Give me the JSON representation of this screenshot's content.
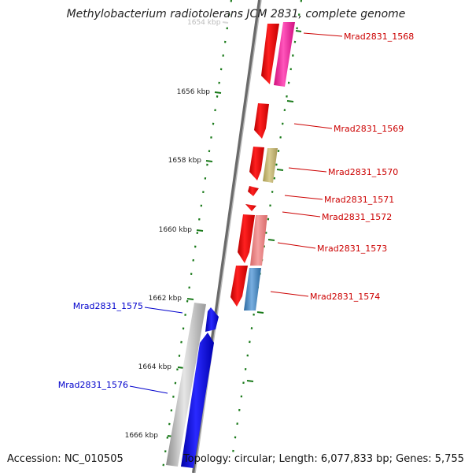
{
  "title": "Methylobacterium radiotolerans JCM 2831, complete genome",
  "footer": {
    "accession": "Accession: NC_010505",
    "info": "Topology: circular; Length: 6,077,833 bp; Genes: 5,755"
  },
  "scale": {
    "partial_top_label": "1654 kbp",
    "ticks": [
      {
        "label": "1656 kbp"
      },
      {
        "label": "1658 kbp"
      },
      {
        "label": "1660 kbp"
      },
      {
        "label": "1662 kbp"
      },
      {
        "label": "1664 kbp"
      },
      {
        "label": "1666 kbp"
      }
    ]
  },
  "genes": [
    {
      "label": "Mrad2831_1568",
      "strand": "forward",
      "color": "#cc0000"
    },
    {
      "label": "Mrad2831_1569",
      "strand": "forward",
      "color": "#cc0000"
    },
    {
      "label": "Mrad2831_1570",
      "strand": "forward",
      "color": "#cc0000"
    },
    {
      "label": "Mrad2831_1571",
      "strand": "forward",
      "color": "#cc0000"
    },
    {
      "label": "Mrad2831_1572",
      "strand": "forward",
      "color": "#cc0000"
    },
    {
      "label": "Mrad2831_1573",
      "strand": "forward",
      "color": "#cc0000"
    },
    {
      "label": "Mrad2831_1574",
      "strand": "forward",
      "color": "#cc0000"
    },
    {
      "label": "Mrad2831_1575",
      "strand": "reverse",
      "color": "#0000cc"
    },
    {
      "label": "Mrad2831_1576",
      "strand": "reverse",
      "color": "#0000cc"
    }
  ],
  "colors": {
    "forward_cds": "#ff0000",
    "reverse_cds": "#0000ff",
    "magenta": "#ff33aa",
    "olive": "#c8bb78",
    "pink": "#ee8080",
    "steel_blue": "#4a88c0",
    "gray": "#b4b4b4",
    "tick": "#1a7a1a"
  }
}
